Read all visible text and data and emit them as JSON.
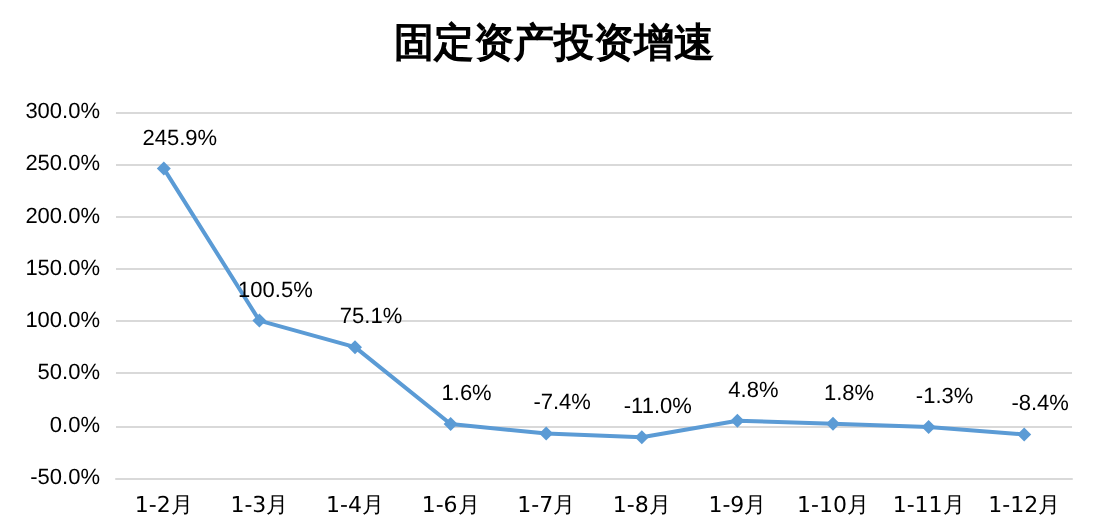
{
  "chart_data": {
    "type": "line",
    "title": "固定资产投资增速",
    "categories": [
      "1-2月",
      "1-3月",
      "1-4月",
      "1-6月",
      "1-7月",
      "1-8月",
      "1-9月",
      "1-10月",
      "1-11月",
      "1-12月"
    ],
    "series": [
      {
        "color": "#5b9bd5",
        "values": [
          245.9,
          100.5,
          75.1,
          1.6,
          -7.4,
          -11.0,
          4.8,
          1.8,
          -1.3,
          -8.4
        ],
        "value_labels": [
          "245.9%",
          "100.5%",
          "75.1%",
          "1.6%",
          "-7.4%",
          "-11.0%",
          "4.8%",
          "1.8%",
          "-1.3%",
          "-8.4%"
        ]
      }
    ],
    "ylim": [
      -50,
      300
    ],
    "yticks": [
      {
        "value": -50,
        "label": "-50.0%"
      },
      {
        "value": 0,
        "label": "0.0%"
      },
      {
        "value": 50,
        "label": "50.0%"
      },
      {
        "value": 100,
        "label": "100.0%"
      },
      {
        "value": 150,
        "label": "150.0%"
      },
      {
        "value": 200,
        "label": "200.0%"
      },
      {
        "value": 250,
        "label": "250.0%"
      },
      {
        "value": 300,
        "label": "300.0%"
      }
    ],
    "grid": "y",
    "marker": "diamond",
    "line_style": "solid"
  }
}
